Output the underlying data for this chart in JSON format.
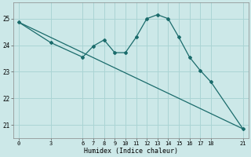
{
  "xlabel": "Humidex (Indice chaleur)",
  "ylabel": "",
  "bg_color": "#cce8e8",
  "grid_color": "#aad4d4",
  "line_color": "#1a6b6b",
  "data_x": [
    0,
    3,
    6,
    7,
    8,
    9,
    10,
    11,
    12,
    13,
    14,
    15,
    16,
    17,
    18,
    21
  ],
  "data_y": [
    24.87,
    24.1,
    23.55,
    23.97,
    24.2,
    23.72,
    23.72,
    24.3,
    25.0,
    25.15,
    25.0,
    24.3,
    23.55,
    23.05,
    22.62,
    20.85
  ],
  "trend_x": [
    0,
    21
  ],
  "trend_y": [
    24.87,
    20.85
  ],
  "xticks": [
    0,
    3,
    6,
    7,
    8,
    9,
    10,
    11,
    12,
    13,
    14,
    15,
    16,
    17,
    18,
    21
  ],
  "yticks": [
    21,
    22,
    23,
    24,
    25
  ],
  "xlim": [
    -0.5,
    21.5
  ],
  "ylim": [
    20.5,
    25.6
  ]
}
